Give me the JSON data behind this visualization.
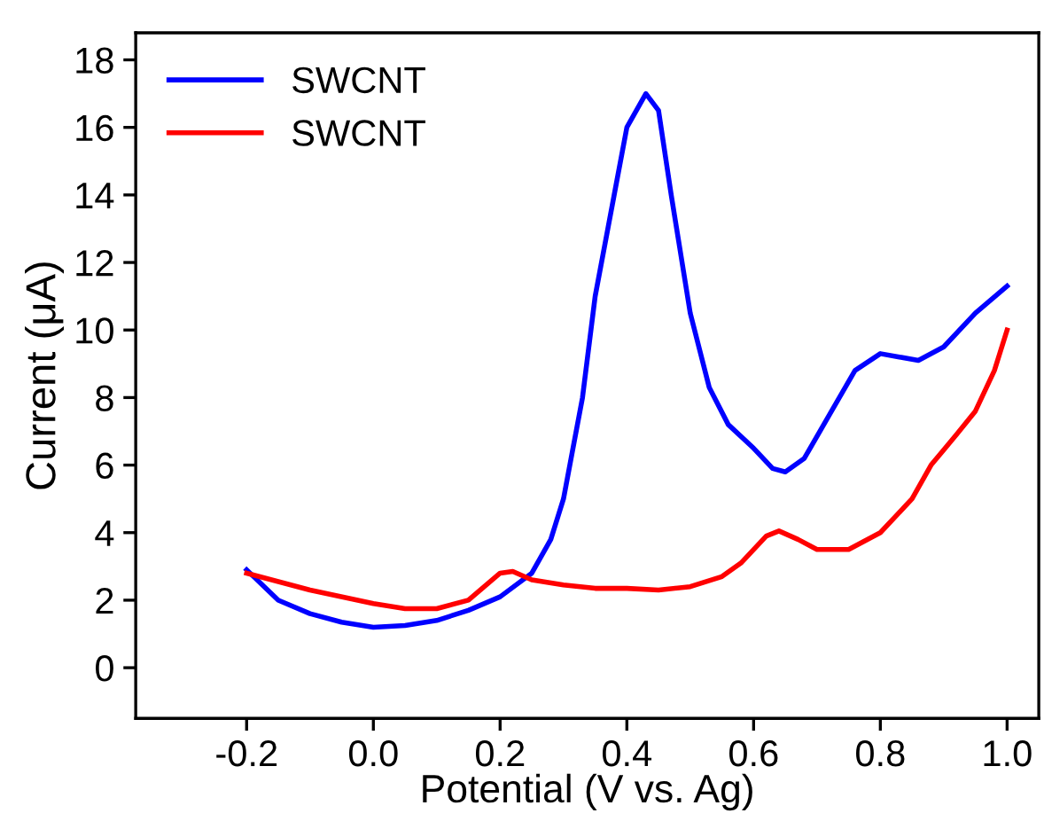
{
  "chart_data": {
    "type": "line",
    "xlabel": "Potential (V vs. Ag)",
    "ylabel": "Current (μA)",
    "xlim": [
      -0.375,
      1.05
    ],
    "ylim": [
      -1.5,
      18.8
    ],
    "xticks": [
      {
        "value": -0.2,
        "label": "-0.2"
      },
      {
        "value": 0.0,
        "label": "0.0"
      },
      {
        "value": 0.2,
        "label": "0.2"
      },
      {
        "value": 0.4,
        "label": "0.4"
      },
      {
        "value": 0.6,
        "label": "0.6"
      },
      {
        "value": 0.8,
        "label": "0.8"
      },
      {
        "value": 1.0,
        "label": "1.0"
      }
    ],
    "yticks": [
      0,
      2,
      4,
      6,
      8,
      10,
      12,
      14,
      16,
      18
    ],
    "grid": false,
    "legend": "top left",
    "marker": "none",
    "line_style": "solid",
    "series": [
      {
        "name": "SWCNT",
        "color": "#0000ff",
        "x": [
          -0.2,
          -0.15,
          -0.1,
          -0.05,
          0,
          0.05,
          0.1,
          0.15,
          0.2,
          0.25,
          0.28,
          0.3,
          0.33,
          0.35,
          0.38,
          0.4,
          0.43,
          0.45,
          0.47,
          0.5,
          0.53,
          0.56,
          0.6,
          0.63,
          0.65,
          0.68,
          0.72,
          0.76,
          0.8,
          0.83,
          0.86,
          0.9,
          0.95,
          1.0
        ],
        "values": [
          2.9,
          2.0,
          1.6,
          1.35,
          1.2,
          1.25,
          1.4,
          1.7,
          2.1,
          2.8,
          3.8,
          5.0,
          8.0,
          11.0,
          14.0,
          16.0,
          17.0,
          16.5,
          14.0,
          10.5,
          8.3,
          7.2,
          6.5,
          5.9,
          5.8,
          6.2,
          7.5,
          8.8,
          9.3,
          9.2,
          9.1,
          9.5,
          10.5,
          11.3
        ]
      },
      {
        "name": "SWCNT",
        "color": "#ff0000",
        "x": [
          -0.2,
          -0.1,
          0,
          0.05,
          0.1,
          0.15,
          0.2,
          0.22,
          0.25,
          0.3,
          0.35,
          0.4,
          0.45,
          0.5,
          0.55,
          0.58,
          0.62,
          0.64,
          0.67,
          0.7,
          0.75,
          0.8,
          0.85,
          0.88,
          0.92,
          0.95,
          0.98,
          1.0
        ],
        "values": [
          2.8,
          2.3,
          1.9,
          1.75,
          1.75,
          2.0,
          2.8,
          2.85,
          2.6,
          2.45,
          2.35,
          2.35,
          2.3,
          2.4,
          2.7,
          3.1,
          3.9,
          4.05,
          3.8,
          3.5,
          3.5,
          4.0,
          5.0,
          6.0,
          6.9,
          7.6,
          8.8,
          10.0
        ]
      }
    ]
  }
}
